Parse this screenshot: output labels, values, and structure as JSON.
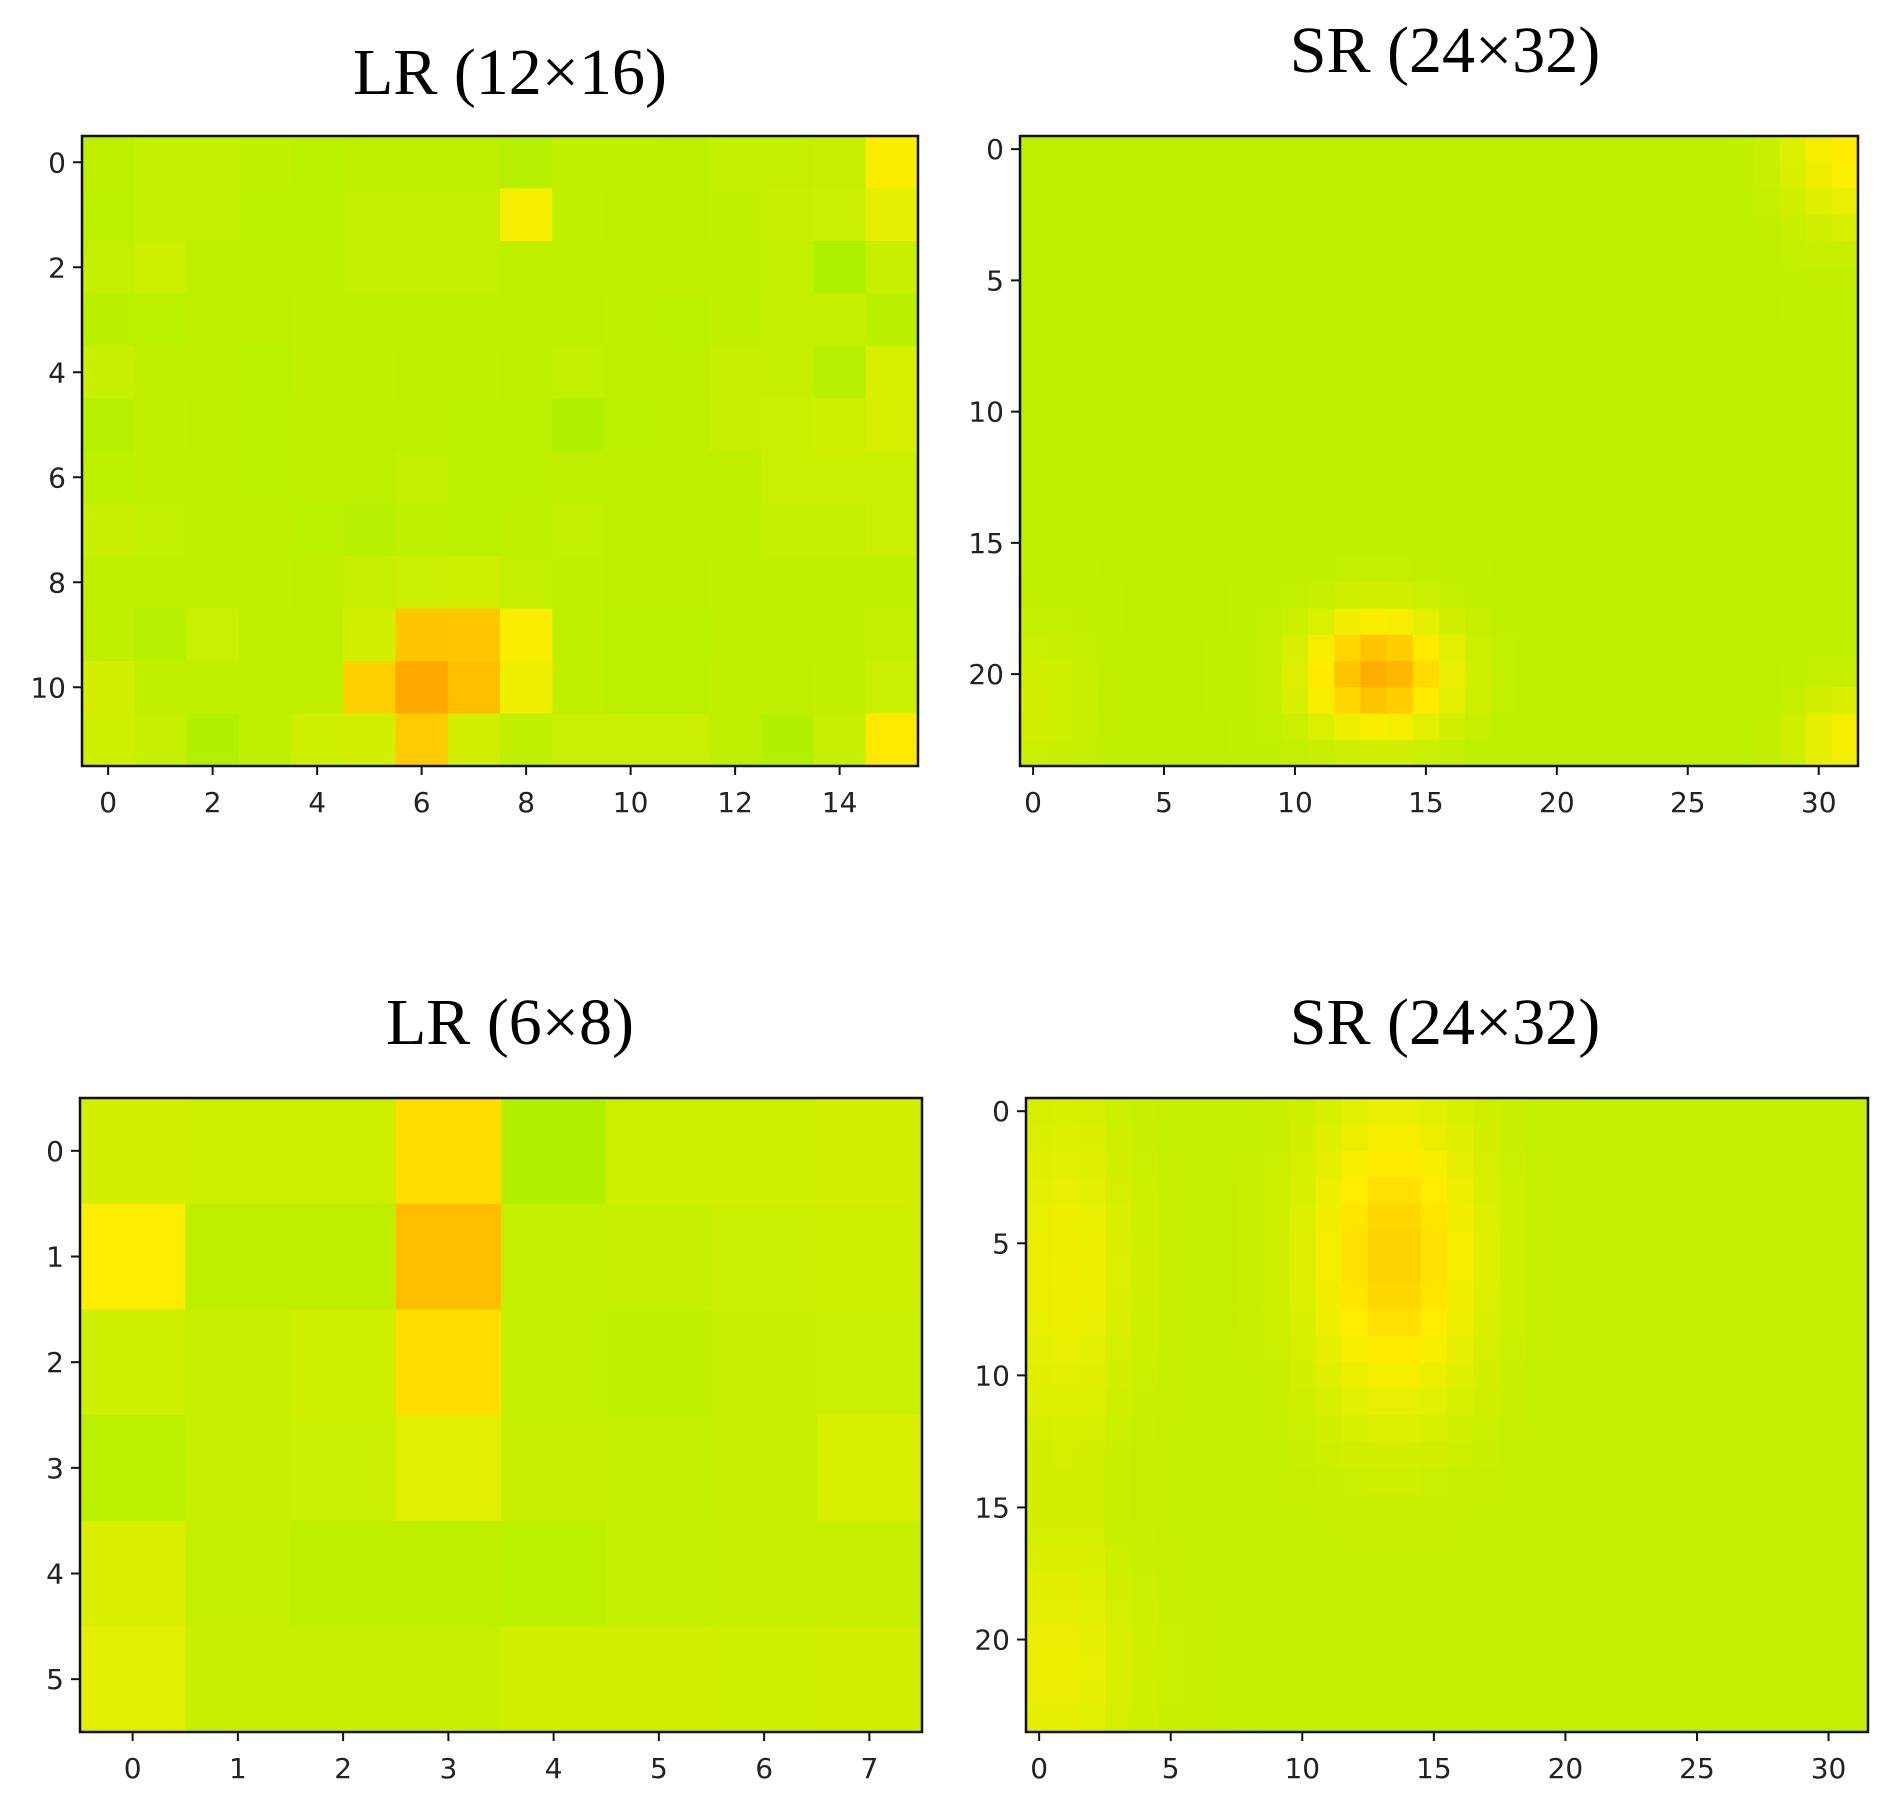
{
  "chart_data": [
    {
      "type": "heatmap",
      "title": "LR (12×16)",
      "rows": 12,
      "cols": 16,
      "xticks": [
        0,
        2,
        4,
        6,
        8,
        10,
        12,
        14
      ],
      "yticks": [
        0,
        2,
        4,
        6,
        8,
        10
      ],
      "values": [
        [
          0.12,
          0.15,
          0.15,
          0.13,
          0.1,
          0.12,
          0.12,
          0.12,
          0.06,
          0.13,
          0.13,
          0.12,
          0.15,
          0.15,
          0.17,
          0.42
        ],
        [
          0.11,
          0.15,
          0.15,
          0.11,
          0.11,
          0.14,
          0.14,
          0.14,
          0.4,
          0.13,
          0.12,
          0.12,
          0.13,
          0.17,
          0.18,
          0.32
        ],
        [
          0.15,
          0.19,
          0.12,
          0.12,
          0.12,
          0.14,
          0.14,
          0.14,
          0.12,
          0.12,
          0.12,
          0.13,
          0.13,
          0.14,
          0.02,
          0.16
        ],
        [
          0.09,
          0.1,
          0.12,
          0.12,
          0.13,
          0.12,
          0.12,
          0.12,
          0.12,
          0.12,
          0.13,
          0.11,
          0.13,
          0.15,
          0.15,
          0.09
        ],
        [
          0.17,
          0.12,
          0.13,
          0.1,
          0.13,
          0.13,
          0.12,
          0.13,
          0.12,
          0.14,
          0.12,
          0.12,
          0.16,
          0.15,
          0.06,
          0.25
        ],
        [
          0.06,
          0.13,
          0.12,
          0.11,
          0.12,
          0.12,
          0.12,
          0.1,
          0.1,
          0.04,
          0.11,
          0.12,
          0.17,
          0.18,
          0.2,
          0.24
        ],
        [
          0.11,
          0.13,
          0.13,
          0.11,
          0.12,
          0.12,
          0.14,
          0.11,
          0.11,
          0.12,
          0.12,
          0.12,
          0.12,
          0.18,
          0.18,
          0.18
        ],
        [
          0.17,
          0.14,
          0.13,
          0.12,
          0.1,
          0.08,
          0.12,
          0.1,
          0.12,
          0.14,
          0.12,
          0.12,
          0.12,
          0.15,
          0.15,
          0.18
        ],
        [
          0.13,
          0.13,
          0.13,
          0.13,
          0.12,
          0.16,
          0.18,
          0.2,
          0.14,
          0.13,
          0.12,
          0.12,
          0.13,
          0.13,
          0.13,
          0.13
        ],
        [
          0.12,
          0.06,
          0.18,
          0.12,
          0.12,
          0.22,
          0.72,
          0.7,
          0.42,
          0.13,
          0.1,
          0.1,
          0.12,
          0.13,
          0.13,
          0.15
        ],
        [
          0.22,
          0.13,
          0.13,
          0.13,
          0.13,
          0.65,
          0.9,
          0.75,
          0.38,
          0.13,
          0.1,
          0.1,
          0.13,
          0.12,
          0.13,
          0.18
        ],
        [
          0.2,
          0.16,
          0.04,
          0.13,
          0.2,
          0.22,
          0.68,
          0.22,
          0.13,
          0.18,
          0.18,
          0.18,
          0.12,
          0.05,
          0.16,
          0.48
        ]
      ]
    },
    {
      "type": "heatmap",
      "title": "SR (24×32)",
      "rows": 24,
      "cols": 32,
      "xticks": [
        0,
        5,
        10,
        15,
        20,
        25,
        30
      ],
      "yticks": [
        0,
        5,
        10,
        15,
        20
      ]
    },
    {
      "type": "heatmap",
      "title": "LR (6×8)",
      "rows": 6,
      "cols": 8,
      "xticks": [
        0,
        1,
        2,
        3,
        4,
        5,
        6,
        7
      ],
      "yticks": [
        0,
        1,
        2,
        3,
        4,
        5
      ],
      "values": [
        [
          0.22,
          0.2,
          0.2,
          0.55,
          0.04,
          0.2,
          0.2,
          0.22
        ],
        [
          0.44,
          0.12,
          0.12,
          0.75,
          0.14,
          0.16,
          0.18,
          0.2
        ],
        [
          0.2,
          0.16,
          0.2,
          0.55,
          0.14,
          0.12,
          0.16,
          0.18
        ],
        [
          0.1,
          0.16,
          0.18,
          0.3,
          0.16,
          0.15,
          0.17,
          0.25
        ],
        [
          0.26,
          0.15,
          0.12,
          0.12,
          0.1,
          0.14,
          0.16,
          0.16
        ],
        [
          0.3,
          0.16,
          0.16,
          0.16,
          0.22,
          0.22,
          0.2,
          0.22
        ]
      ]
    },
    {
      "type": "heatmap",
      "title": "SR (24×32)",
      "rows": 24,
      "cols": 32,
      "xticks": [
        0,
        5,
        10,
        15,
        20,
        25,
        30
      ],
      "yticks": [
        0,
        5,
        10,
        15,
        20
      ]
    }
  ],
  "colors": {
    "low": "#a8f000",
    "mid": "#ffee00",
    "high": "#ff9800"
  }
}
